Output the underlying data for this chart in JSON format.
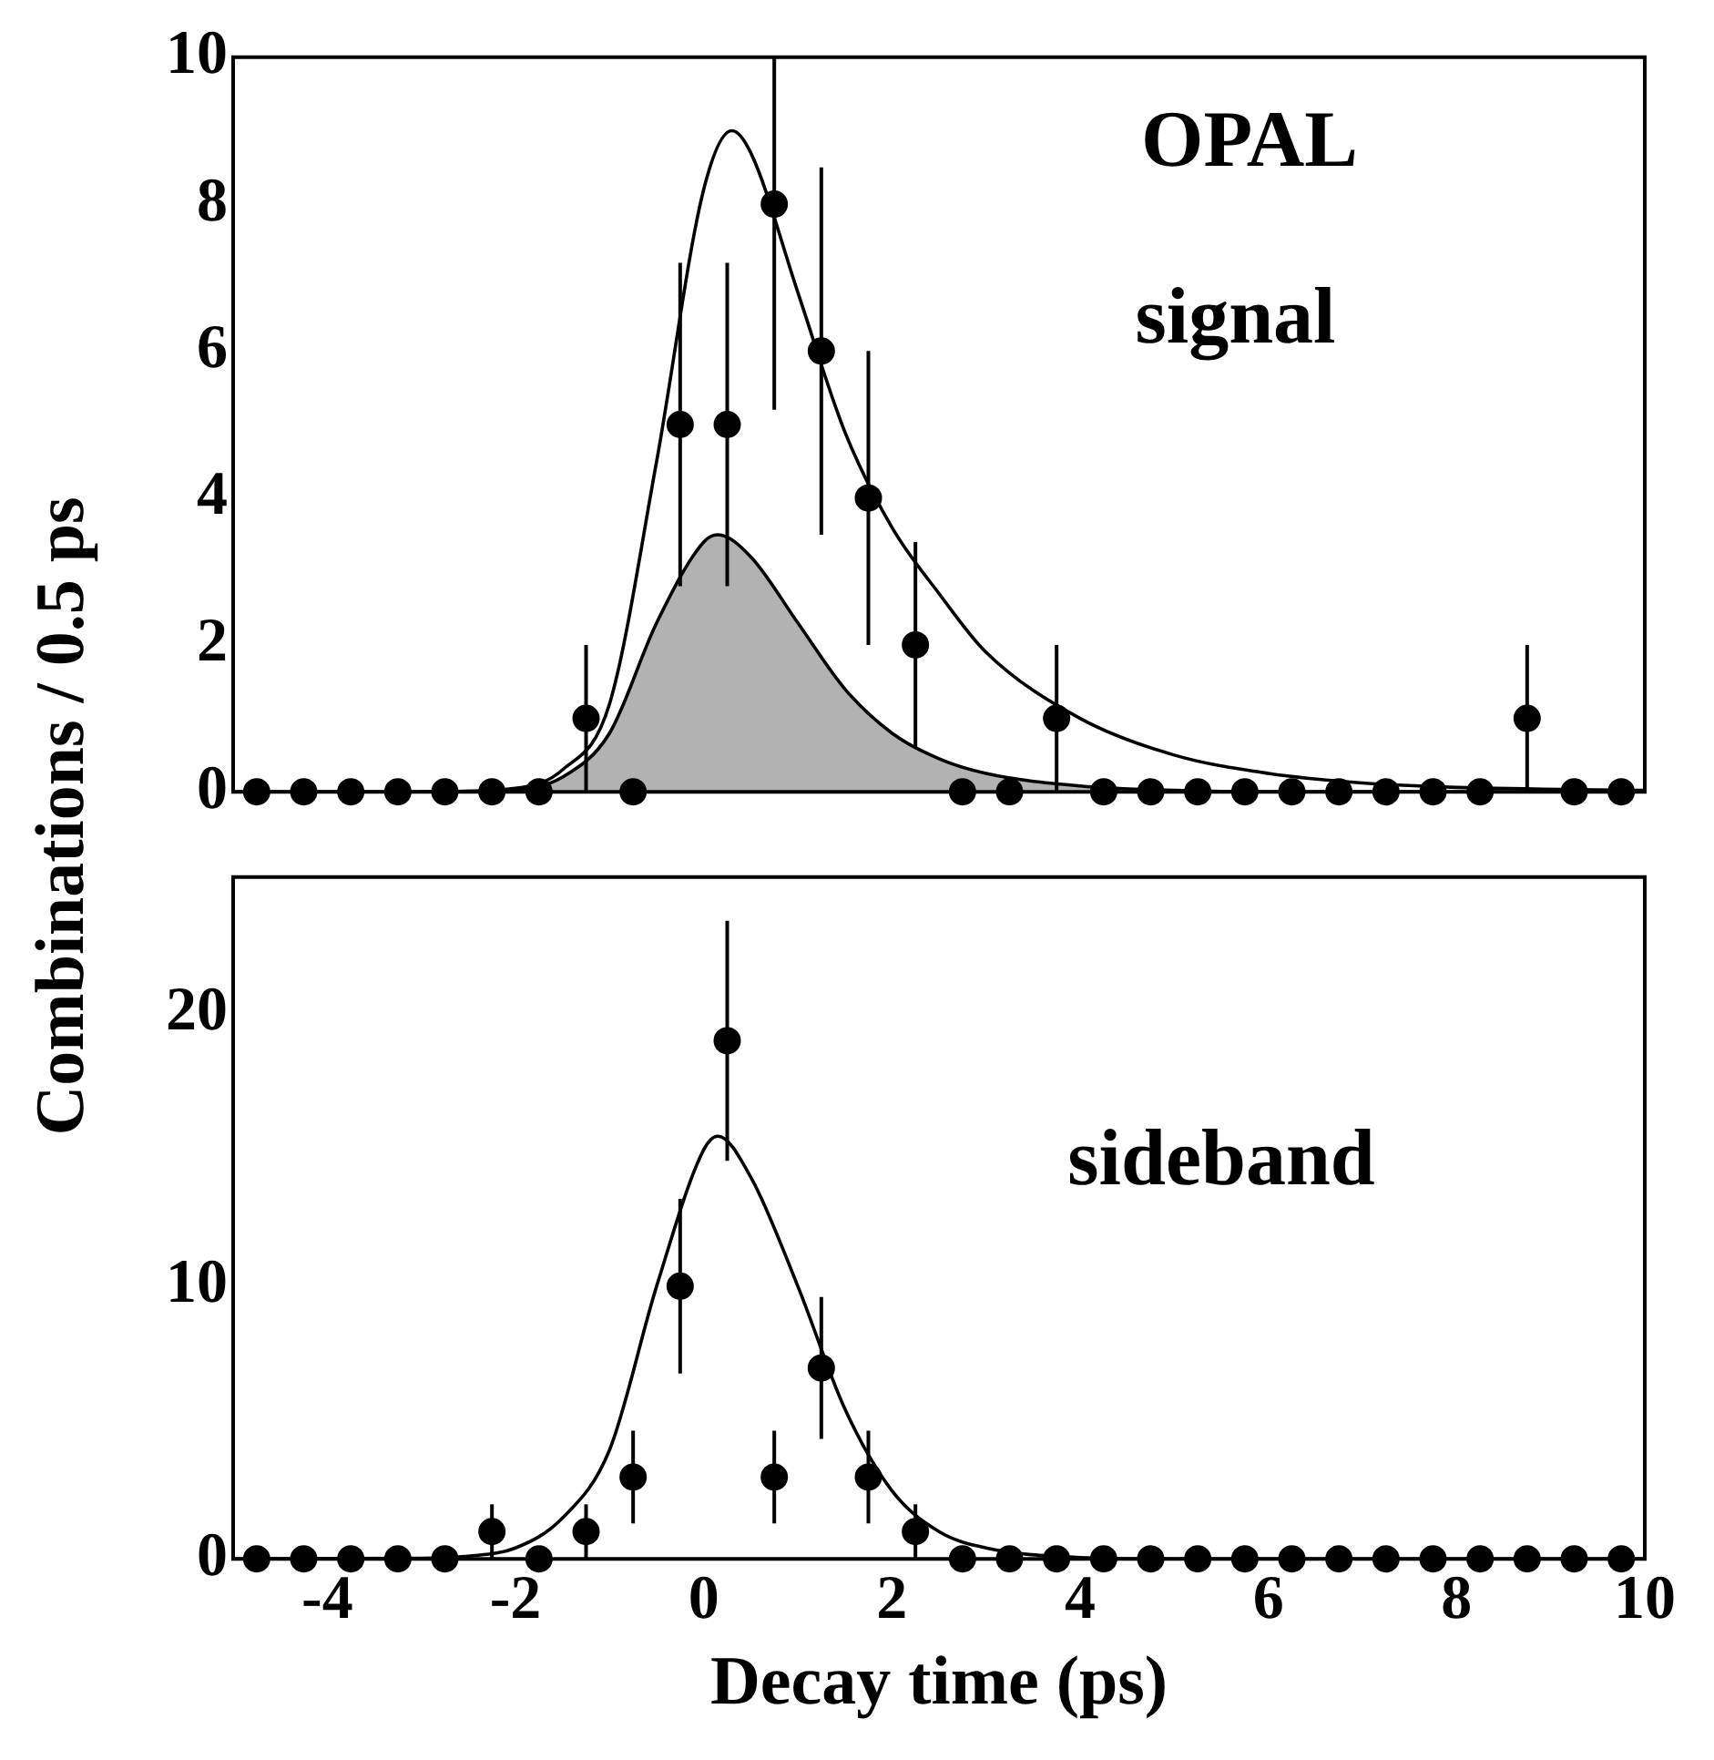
{
  "chart_data": [
    {
      "type": "scatter",
      "xlim": [
        -5,
        10
      ],
      "xticks": [
        -4,
        -2,
        0,
        2,
        4,
        6,
        8,
        10
      ],
      "ylim": [
        0,
        10
      ],
      "yticks": [
        0,
        2,
        4,
        6,
        8,
        10
      ],
      "tick_labels": "y",
      "grid": false,
      "legend": false,
      "annotations": [
        "OPAL",
        "signal"
      ],
      "series": [
        {
          "type": "area",
          "color": "#8c8c8c",
          "x": [
            -3,
            -2,
            -1.5,
            -1,
            -0.5,
            0,
            0.15,
            0.5,
            1,
            1.5,
            2,
            2.5,
            3,
            4,
            5,
            6,
            10
          ],
          "values": [
            0,
            0.03,
            0.2,
            0.8,
            2.3,
            3.4,
            3.5,
            3.2,
            2.3,
            1.4,
            0.8,
            0.45,
            0.25,
            0.08,
            0.02,
            0,
            0
          ]
        },
        {
          "type": "line",
          "color": "#000000",
          "x": [
            -5,
            -3,
            -2,
            -1.5,
            -1,
            -0.5,
            0,
            0.3,
            0.5,
            1,
            1.5,
            2,
            2.5,
            3,
            4,
            5,
            6,
            7,
            8,
            10
          ],
          "values": [
            0,
            0,
            0.05,
            0.3,
            1.2,
            4.5,
            8.2,
            9.0,
            8.7,
            6.8,
            4.9,
            3.6,
            2.7,
            1.9,
            1.0,
            0.5,
            0.25,
            0.12,
            0.06,
            0.02
          ]
        },
        {
          "marker": "circle",
          "color": "#000000",
          "x": [
            -4.75,
            -4.25,
            -3.75,
            -3.25,
            -2.75,
            -2.25,
            -1.75,
            -1.25,
            -0.75,
            -0.25,
            0.25,
            0.75,
            1.25,
            1.75,
            2.25,
            2.75,
            3.25,
            3.75,
            4.25,
            4.75,
            5.25,
            5.75,
            6.25,
            6.75,
            7.25,
            7.75,
            8.25,
            8.75,
            9.25,
            9.75
          ],
          "values": [
            0,
            0,
            0,
            0,
            0,
            0,
            0,
            1,
            0,
            5,
            5,
            8,
            6,
            4,
            2,
            0,
            0,
            1,
            0,
            0,
            0,
            0,
            0,
            0,
            0,
            0,
            0,
            1,
            0,
            0
          ],
          "errors": [
            null,
            null,
            null,
            null,
            null,
            null,
            null,
            1,
            null,
            2.2,
            2.2,
            [
              5.2,
              10
            ],
            2.5,
            2,
            1.4,
            null,
            null,
            1,
            null,
            null,
            null,
            null,
            null,
            null,
            null,
            null,
            null,
            1,
            null,
            null
          ]
        }
      ]
    },
    {
      "type": "scatter",
      "xlim": [
        -5,
        10
      ],
      "xticks": [
        -4,
        -2,
        0,
        2,
        4,
        6,
        8,
        10
      ],
      "ylim": [
        0,
        25
      ],
      "yticks": [
        0,
        10,
        20
      ],
      "grid": false,
      "legend": false,
      "xlabel": "Decay time (ps)",
      "ylabel": "Combinations / 0.5 ps",
      "annotations": [
        "sideband"
      ],
      "series": [
        {
          "type": "line",
          "color": "#000000",
          "x": [
            -5,
            -3,
            -2.5,
            -2,
            -1.5,
            -1,
            -0.5,
            0,
            0.15,
            0.5,
            1,
            1.5,
            2,
            2.5,
            3,
            4,
            5,
            10
          ],
          "values": [
            0,
            0.02,
            0.1,
            0.4,
            1.5,
            4,
            10,
            15,
            15.5,
            14,
            10,
            5.5,
            2.5,
            1,
            0.4,
            0.05,
            0,
            0
          ]
        },
        {
          "marker": "circle",
          "color": "#000000",
          "x": [
            -4.75,
            -4.25,
            -3.75,
            -3.25,
            -2.75,
            -2.25,
            -1.75,
            -1.25,
            -0.75,
            -0.25,
            0.25,
            0.75,
            1.25,
            1.75,
            2.25,
            2.75,
            3.25,
            3.75,
            4.25,
            4.75,
            5.25,
            5.75,
            6.25,
            6.75,
            7.25,
            7.75,
            8.25,
            8.75,
            9.25,
            9.75
          ],
          "values": [
            0,
            0,
            0,
            0,
            0,
            1,
            0,
            1,
            3,
            10,
            19,
            3,
            7,
            3,
            1,
            0,
            0,
            0,
            0,
            0,
            0,
            0,
            0,
            0,
            0,
            0,
            0,
            0,
            0,
            0
          ],
          "errors": [
            null,
            null,
            null,
            null,
            null,
            1,
            null,
            1,
            1.7,
            3.2,
            4.4,
            1.7,
            2.6,
            1.7,
            1,
            null,
            null,
            null,
            null,
            null,
            null,
            null,
            null,
            null,
            null,
            null,
            null,
            null,
            null,
            null
          ]
        }
      ]
    }
  ]
}
